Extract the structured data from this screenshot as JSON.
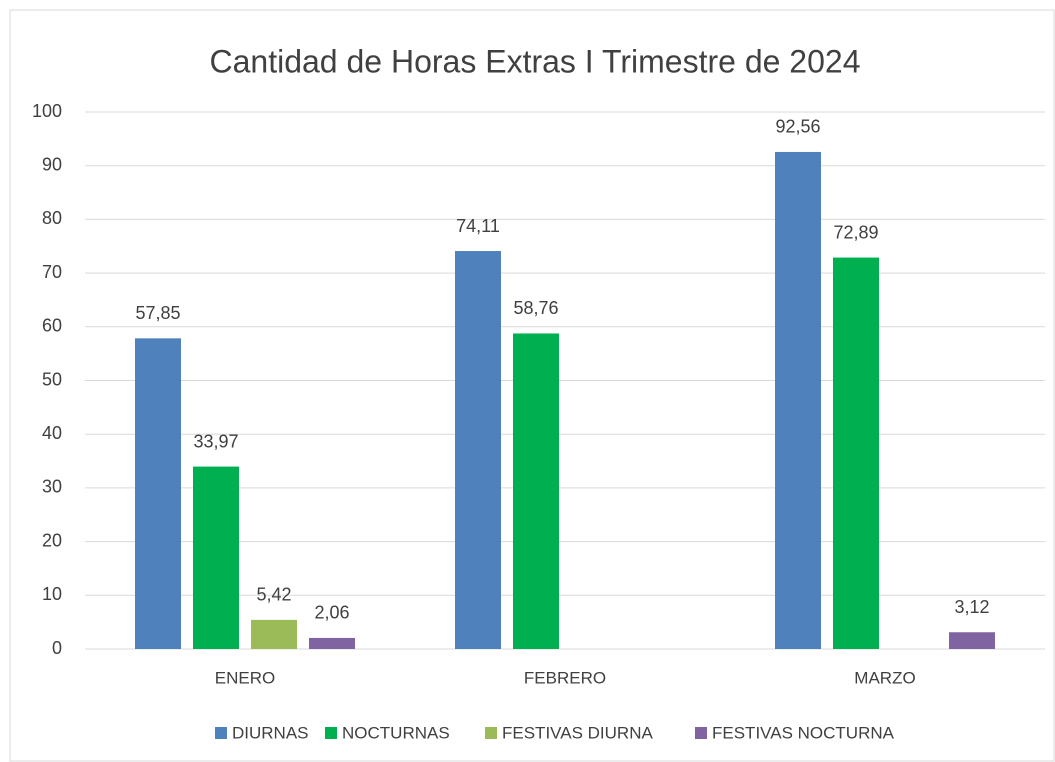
{
  "chart_data": {
    "type": "bar",
    "title": "Cantidad de Horas Extras I Trimestre de 2024",
    "categories": [
      "ENERO",
      "FEBRERO",
      "MARZO"
    ],
    "series": [
      {
        "name": "DIURNAS",
        "color": "#4f81bd",
        "values": [
          57.85,
          74.11,
          92.56
        ],
        "value_labels": [
          "57,85",
          "74,11",
          "92,56"
        ]
      },
      {
        "name": "NOCTURNAS",
        "color": "#00b050",
        "values": [
          33.97,
          58.76,
          72.89
        ],
        "value_labels": [
          "33,97",
          "58,76",
          "72,89"
        ]
      },
      {
        "name": "FESTIVAS DIURNA",
        "color": "#9bbb59",
        "values": [
          5.42,
          null,
          null
        ],
        "value_labels": [
          "5,42",
          null,
          null
        ]
      },
      {
        "name": "FESTIVAS NOCTURNA",
        "color": "#8064a2",
        "values": [
          2.06,
          null,
          3.12
        ],
        "value_labels": [
          "2,06",
          null,
          "3,12"
        ]
      }
    ],
    "ylim": [
      0,
      100
    ],
    "yticks": [
      0,
      10,
      20,
      30,
      40,
      50,
      60,
      70,
      80,
      90,
      100
    ],
    "grid": true,
    "legend": "bottom"
  }
}
